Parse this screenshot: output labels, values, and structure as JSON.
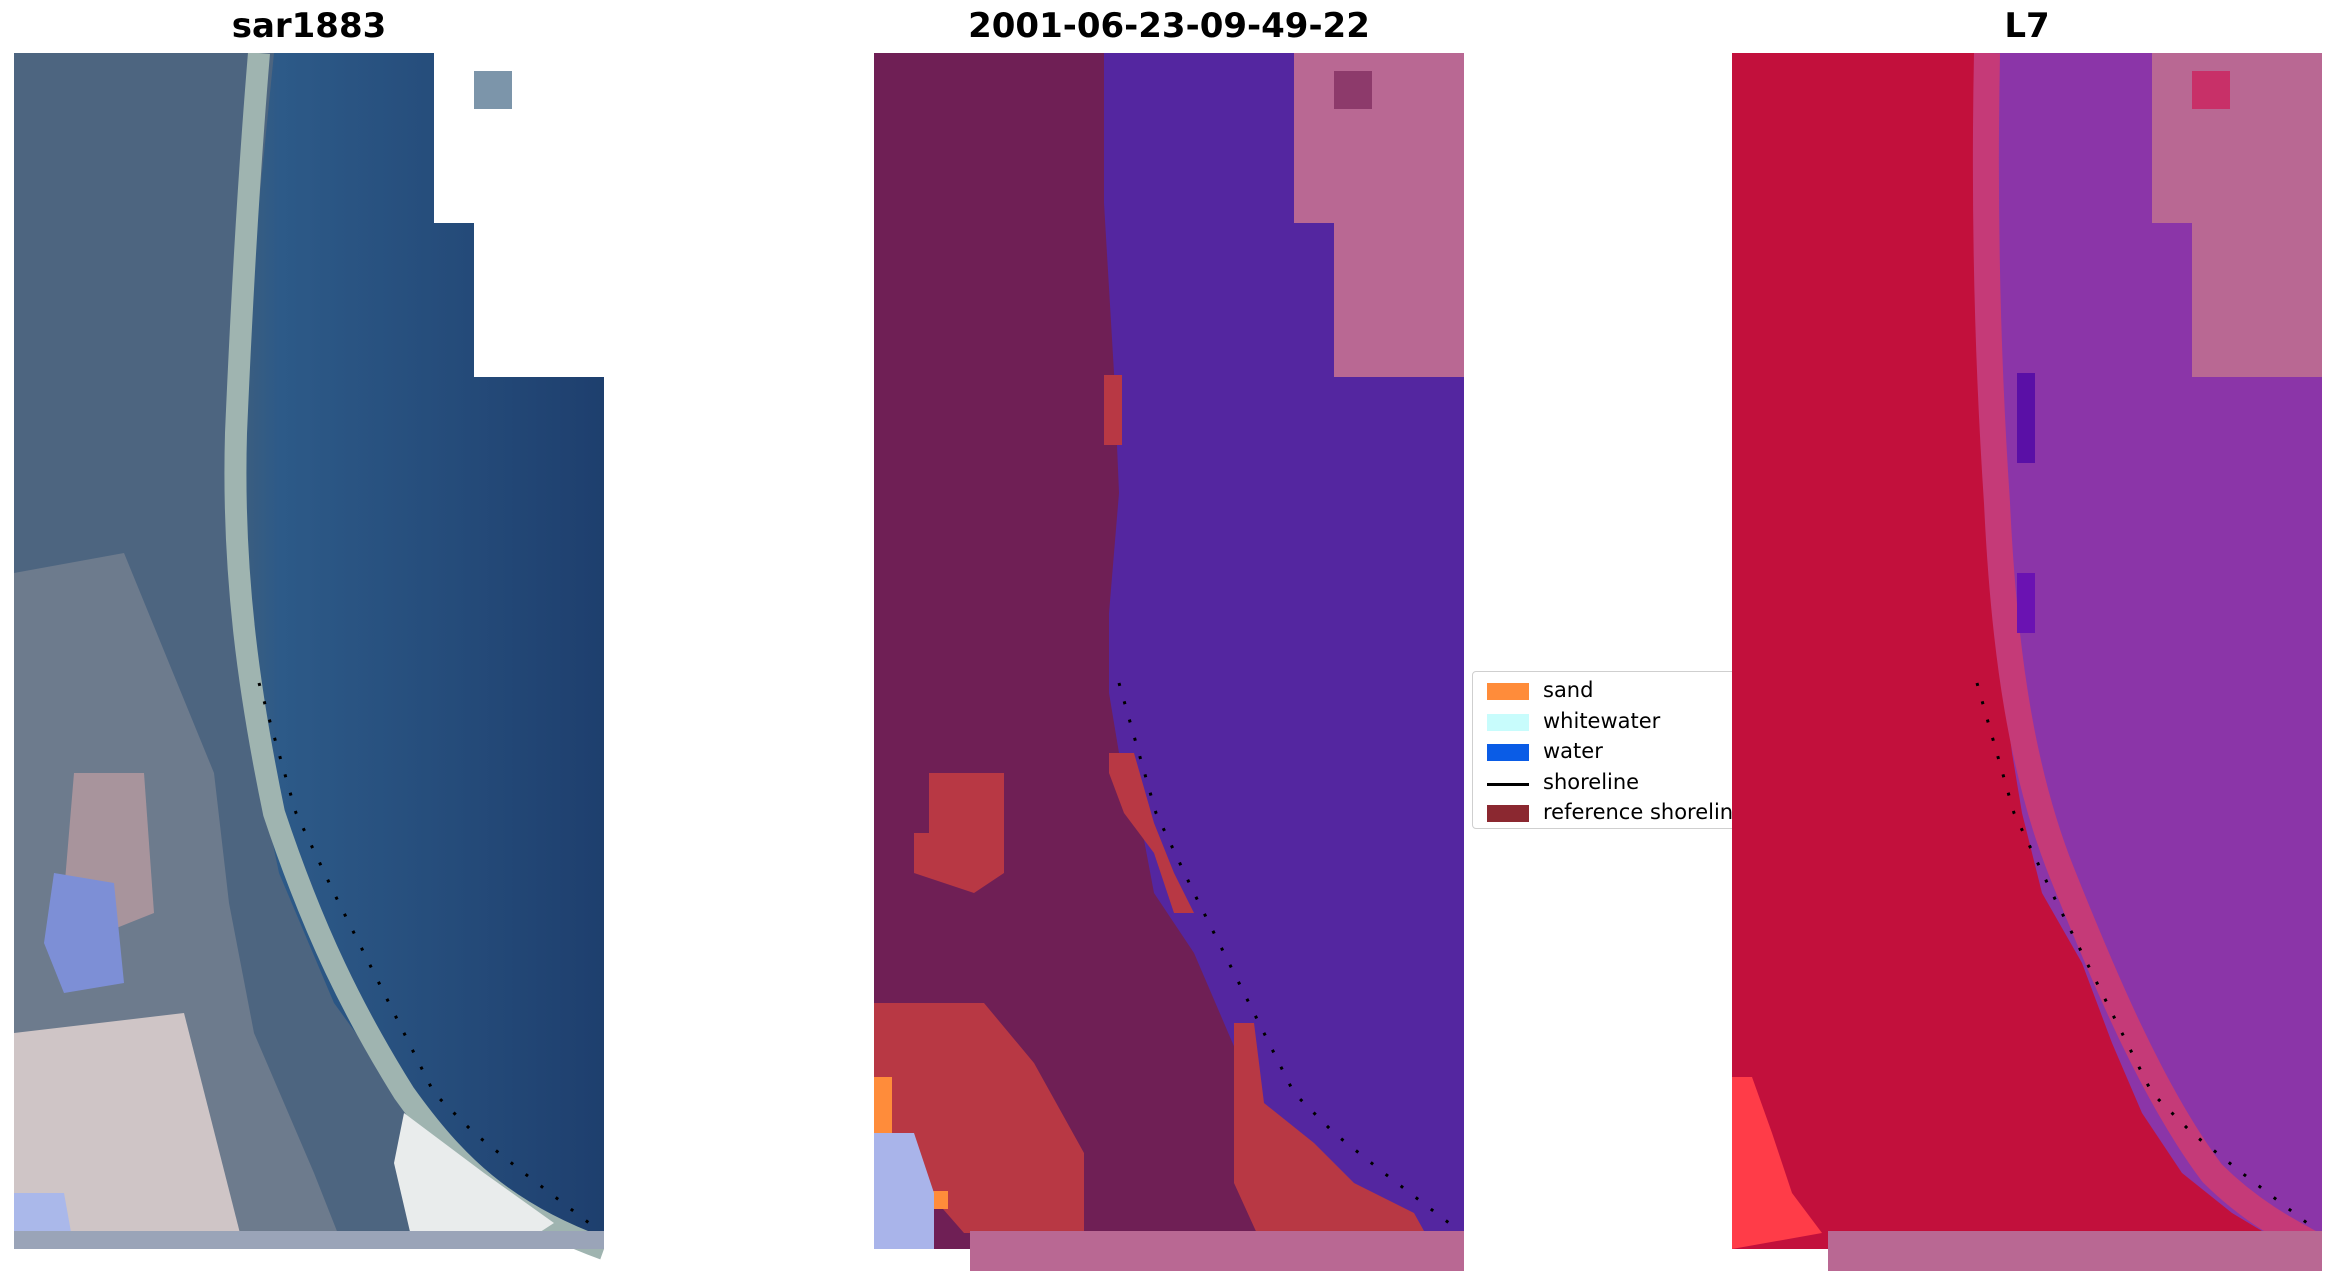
{
  "panels": [
    {
      "title": "sar1883",
      "kind": "rgb"
    },
    {
      "title": "2001-06-23-09-49-22",
      "kind": "classified"
    },
    {
      "title": "L7",
      "kind": "false-color"
    }
  ],
  "legend": {
    "items": [
      {
        "label": "sand",
        "type": "patch",
        "color": "#ff8c3a"
      },
      {
        "label": "whitewater",
        "type": "patch",
        "color": "#c8fcfc"
      },
      {
        "label": "water",
        "type": "patch",
        "color": "#0a5ce6"
      },
      {
        "label": "shoreline",
        "type": "line",
        "color": "#000000"
      },
      {
        "label": "reference shoreline",
        "type": "patch",
        "color": "#8b2830"
      }
    ]
  },
  "colors": {
    "rgb_water": "#1e3f6e",
    "rgb_land": "#4d6580",
    "rgb_beach": "#dcdcdc",
    "class_water": "#5426a0",
    "class_land": "#6f1f55",
    "class_sand": "#b83844",
    "class_nodata": "#b96893",
    "l7_water": "#8b35a8",
    "l7_land": "#c2103c",
    "l7_nodata": "#b96893"
  }
}
